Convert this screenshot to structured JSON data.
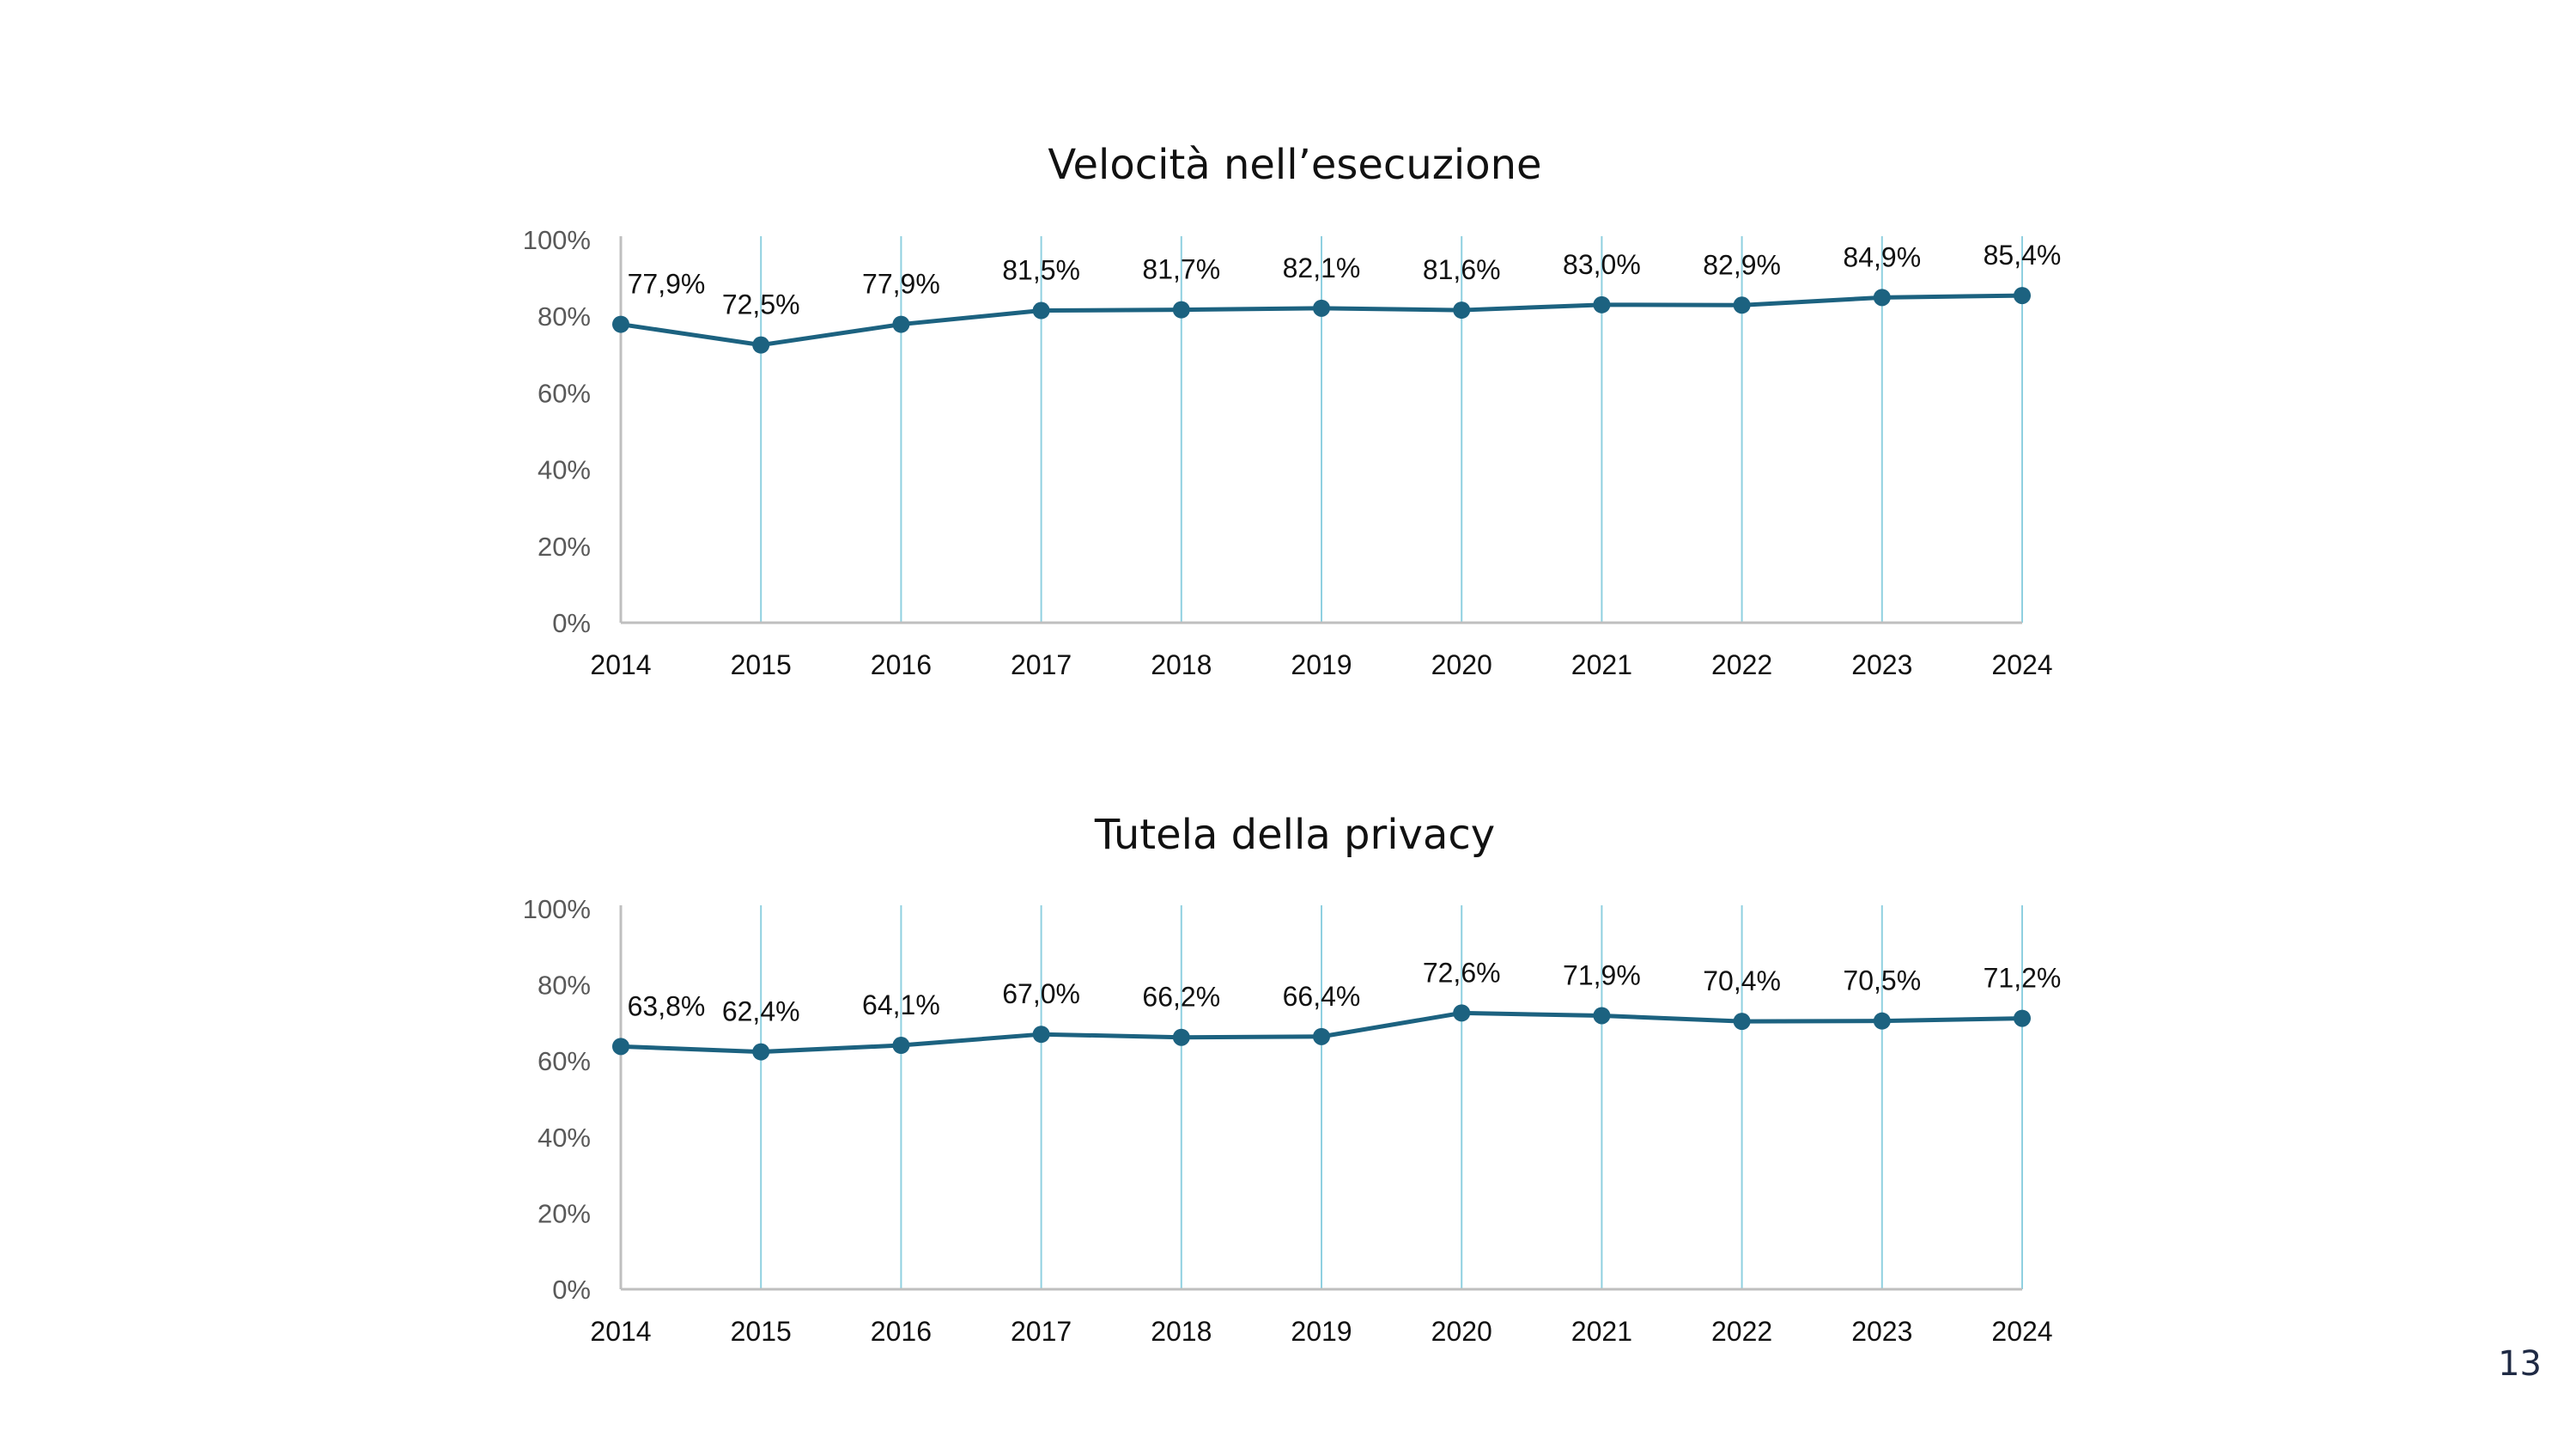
{
  "page_number": "13",
  "colors": {
    "line": "#1c6280",
    "drop_line": "#8fd0e0",
    "axis": "#bfbfbf"
  },
  "chart_data": [
    {
      "type": "line",
      "title": "Velocità nell’esecuzione",
      "x": [
        "2014",
        "2015",
        "2016",
        "2017",
        "2018",
        "2019",
        "2020",
        "2021",
        "2022",
        "2023",
        "2024"
      ],
      "values": [
        77.9,
        72.5,
        77.9,
        81.5,
        81.7,
        82.1,
        81.6,
        83.0,
        82.9,
        84.9,
        85.4
      ],
      "data_labels": [
        "77,9%",
        "72,5%",
        "77,9%",
        "81,5%",
        "81,7%",
        "82,1%",
        "81,6%",
        "83,0%",
        "82,9%",
        "84,9%",
        "85,4%"
      ],
      "y_ticks": [
        "0%",
        "20%",
        "40%",
        "60%",
        "80%",
        "100%"
      ],
      "ylim": [
        0,
        100
      ],
      "drop_lines": true,
      "legend": "none"
    },
    {
      "type": "line",
      "title": "Tutela della privacy",
      "x": [
        "2014",
        "2015",
        "2016",
        "2017",
        "2018",
        "2019",
        "2020",
        "2021",
        "2022",
        "2023",
        "2024"
      ],
      "values": [
        63.8,
        62.4,
        64.1,
        67.0,
        66.2,
        66.4,
        72.6,
        71.9,
        70.4,
        70.5,
        71.2
      ],
      "data_labels": [
        "63,8%",
        "62,4%",
        "64,1%",
        "67,0%",
        "66,2%",
        "66,4%",
        "72,6%",
        "71,9%",
        "70,4%",
        "70,5%",
        "71,2%"
      ],
      "y_ticks": [
        "0%",
        "20%",
        "40%",
        "60%",
        "80%",
        "100%"
      ],
      "ylim": [
        0,
        100
      ],
      "drop_lines": true,
      "legend": "none"
    }
  ]
}
